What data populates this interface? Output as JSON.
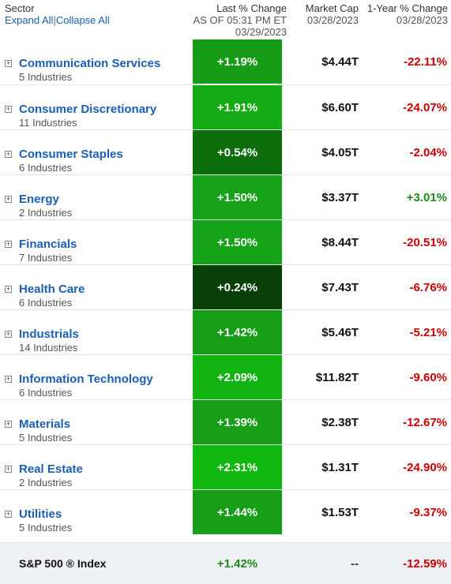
{
  "header": {
    "sector_label": "Sector",
    "expand_all": "Expand All",
    "separator": "|",
    "collapse_all": "Collapse All",
    "last_change_label": "Last % Change",
    "last_change_asof": "AS OF 05:31 PM ET",
    "last_change_date": "03/29/2023",
    "market_cap_label": "Market Cap",
    "market_cap_date": "03/28/2023",
    "one_year_label": "1-Year % Change",
    "one_year_date": "03/28/2023"
  },
  "colors": {
    "link": "#1a5fb4",
    "positive_text": "#1a8a1a",
    "negative_text": "#cc0000"
  },
  "sectors": [
    {
      "name": "Communication Services",
      "industries": "5 Industries",
      "change": "+1.19%",
      "market_cap": "$4.44T",
      "one_year": "-22.11%",
      "bg": "#169c16",
      "yr_color": "#cc0000"
    },
    {
      "name": "Consumer Discretionary",
      "industries": "11 Industries",
      "change": "+1.91%",
      "market_cap": "$6.60T",
      "one_year": "-24.07%",
      "bg": "#14ab14",
      "yr_color": "#cc0000"
    },
    {
      "name": "Consumer Staples",
      "industries": "6 Industries",
      "change": "+0.54%",
      "market_cap": "$4.05T",
      "one_year": "-2.04%",
      "bg": "#0b6e0b",
      "yr_color": "#cc0000"
    },
    {
      "name": "Energy",
      "industries": "2 Industries",
      "change": "+1.50%",
      "market_cap": "$3.37T",
      "one_year": "+3.01%",
      "bg": "#17a317",
      "yr_color": "#1a8a1a"
    },
    {
      "name": "Financials",
      "industries": "7 Industries",
      "change": "+1.50%",
      "market_cap": "$8.44T",
      "one_year": "-20.51%",
      "bg": "#17a317",
      "yr_color": "#cc0000"
    },
    {
      "name": "Health Care",
      "industries": "6 Industries",
      "change": "+0.24%",
      "market_cap": "$7.43T",
      "one_year": "-6.76%",
      "bg": "#073f07",
      "yr_color": "#cc0000"
    },
    {
      "name": "Industrials",
      "industries": "14 Industries",
      "change": "+1.42%",
      "market_cap": "$5.46T",
      "one_year": "-5.21%",
      "bg": "#169f16",
      "yr_color": "#cc0000"
    },
    {
      "name": "Information Technology",
      "industries": "6 Industries",
      "change": "+2.09%",
      "market_cap": "$11.82T",
      "one_year": "-9.60%",
      "bg": "#12b312",
      "yr_color": "#cc0000"
    },
    {
      "name": "Materials",
      "industries": "5 Industries",
      "change": "+1.39%",
      "market_cap": "$2.38T",
      "one_year": "-12.67%",
      "bg": "#169f16",
      "yr_color": "#cc0000"
    },
    {
      "name": "Real Estate",
      "industries": "2 Industries",
      "change": "+2.31%",
      "market_cap": "$1.31T",
      "one_year": "-24.90%",
      "bg": "#10b810",
      "yr_color": "#cc0000"
    },
    {
      "name": "Utilities",
      "industries": "5 Industries",
      "change": "+1.44%",
      "market_cap": "$1.53T",
      "one_year": "-9.37%",
      "bg": "#169f16",
      "yr_color": "#cc0000"
    }
  ],
  "index": {
    "name": "S&P 500 ® Index",
    "change": "+1.42%",
    "market_cap": "--",
    "one_year": "-12.59%"
  }
}
